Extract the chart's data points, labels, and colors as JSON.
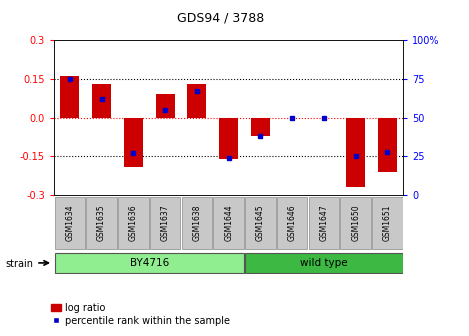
{
  "title": "GDS94 / 3788",
  "samples": [
    "GSM1634",
    "GSM1635",
    "GSM1636",
    "GSM1637",
    "GSM1638",
    "GSM1644",
    "GSM1645",
    "GSM1646",
    "GSM1647",
    "GSM1650",
    "GSM1651"
  ],
  "log_ratios": [
    0.16,
    0.13,
    -0.19,
    0.09,
    0.13,
    -0.16,
    -0.07,
    0.0,
    0.0,
    -0.27,
    -0.21
  ],
  "percentile_ranks": [
    75,
    62,
    27,
    55,
    67,
    24,
    38,
    50,
    50,
    25,
    28
  ],
  "groups": [
    {
      "name": "BY4716",
      "start": 0,
      "end": 5,
      "color": "#90EE90"
    },
    {
      "name": "wild type",
      "start": 6,
      "end": 10,
      "color": "#3CB843"
    }
  ],
  "bar_color": "#CC0000",
  "blue_color": "#0000CC",
  "ylim": [
    -0.3,
    0.3
  ],
  "y2lim": [
    0,
    100
  ],
  "yticks": [
    -0.3,
    -0.15,
    0.0,
    0.15,
    0.3
  ],
  "y2ticks": [
    0,
    25,
    50,
    75,
    100
  ],
  "hlines": [
    -0.15,
    0.0,
    0.15
  ],
  "hline_colors": [
    "black",
    "red",
    "black"
  ],
  "bar_width": 0.6,
  "bg_color": "#FFFFFF",
  "tick_area_bg": "#C8C8C8",
  "strain_label": "strain",
  "legend_entries": [
    "log ratio",
    "percentile rank within the sample"
  ]
}
